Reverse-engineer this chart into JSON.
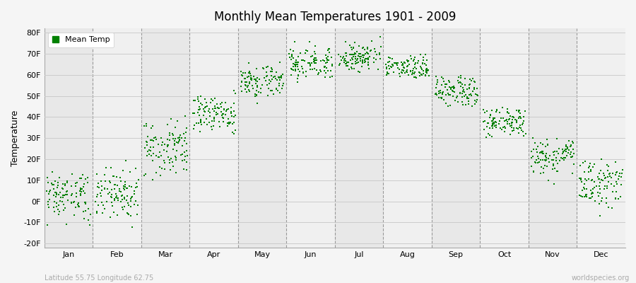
{
  "title": "Monthly Mean Temperatures 1901 - 2009",
  "ylabel": "Temperature",
  "ytick_labels": [
    "-20F",
    "-10F",
    "0F",
    "10F",
    "20F",
    "30F",
    "40F",
    "50F",
    "60F",
    "70F",
    "80F"
  ],
  "ytick_values": [
    -20,
    -10,
    0,
    10,
    20,
    30,
    40,
    50,
    60,
    70,
    80
  ],
  "ylim": [
    -22,
    82
  ],
  "months": [
    "Jan",
    "Feb",
    "Mar",
    "Apr",
    "May",
    "Jun",
    "Jul",
    "Aug",
    "Sep",
    "Oct",
    "Nov",
    "Dec"
  ],
  "month_centers": [
    0.5,
    1.5,
    2.5,
    3.5,
    4.5,
    5.5,
    6.5,
    7.5,
    8.5,
    9.5,
    10.5,
    11.5
  ],
  "xlim": [
    0,
    12
  ],
  "dot_color": "#008000",
  "dot_size": 2,
  "bg_color": "#f5f5f5",
  "plot_bg_odd": "#e8e8e8",
  "plot_bg_even": "#f0f0f0",
  "grid_color": "#cccccc",
  "legend_label": "Mean Temp",
  "subtitle_left": "Latitude 55.75 Longitude 62.75",
  "subtitle_right": "worldspecies.org",
  "month_means": [
    3,
    4,
    26,
    42,
    57,
    66,
    68,
    63,
    52,
    38,
    22,
    8
  ],
  "month_stds": [
    6,
    6,
    7,
    5,
    4,
    4,
    4,
    3,
    4,
    4,
    4,
    6
  ],
  "month_mins": [
    -18,
    -18,
    10,
    30,
    45,
    55,
    60,
    58,
    45,
    30,
    7,
    -14
  ],
  "month_maxs": [
    14,
    20,
    42,
    54,
    68,
    76,
    78,
    70,
    60,
    45,
    32,
    20
  ],
  "n_points": 109
}
